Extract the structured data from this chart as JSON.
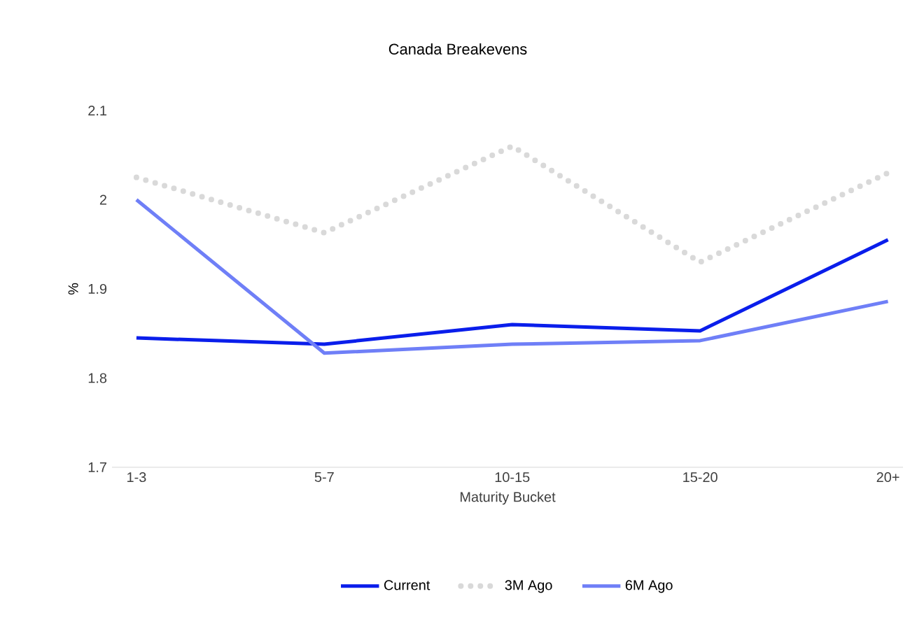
{
  "chart_data": {
    "type": "line",
    "title": "Canada Breakevens",
    "xlabel": "Maturity Bucket",
    "ylabel": "%",
    "categories": [
      "1-3",
      "5-7",
      "10-15",
      "15-20",
      "20+"
    ],
    "series": [
      {
        "name": "Current",
        "color": "#0a1eeb",
        "values": [
          1.845,
          1.838,
          1.86,
          1.853,
          1.955
        ]
      },
      {
        "name": "3M Ago",
        "color": "#d9d9d9",
        "line_style": "dotted",
        "values": [
          2.025,
          1.963,
          2.06,
          1.93,
          2.03
        ]
      },
      {
        "name": "6M Ago",
        "color": "#6f7ff7",
        "values": [
          2.0,
          1.828,
          1.838,
          1.842,
          1.886
        ]
      }
    ],
    "ylim": [
      1.7,
      2.1
    ],
    "yticks": [
      1.7,
      1.8,
      1.9,
      2,
      2.1
    ],
    "grid": false,
    "legend": "bottom",
    "marker": "none"
  }
}
